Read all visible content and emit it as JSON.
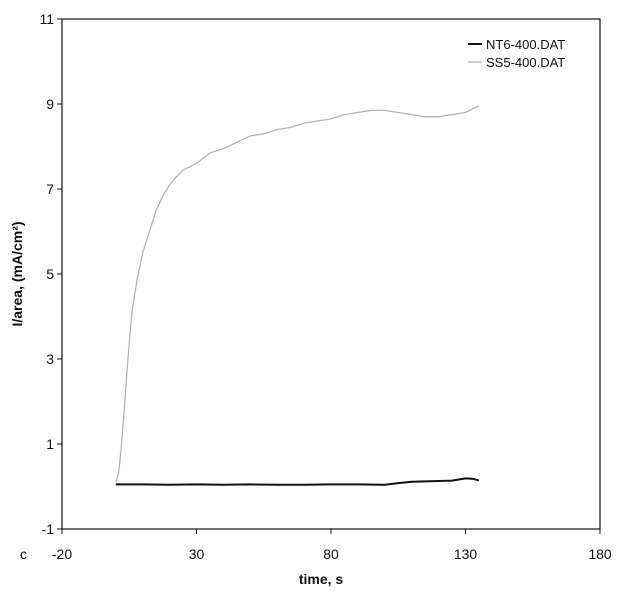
{
  "chart_data": {
    "type": "line",
    "panel_label": "c",
    "xlabel": "time, s",
    "ylabel": "I/area, (mA/cm²)",
    "xlim": [
      -20,
      180
    ],
    "ylim": [
      -1,
      11
    ],
    "xticks": [
      -20,
      30,
      80,
      130,
      180
    ],
    "yticks": [
      -1,
      1,
      3,
      5,
      7,
      9,
      11
    ],
    "grid": false,
    "legend_position": "top-right",
    "series": [
      {
        "name": "NT6-400.DAT",
        "color": "#111111",
        "x": [
          0,
          10,
          20,
          30,
          40,
          50,
          60,
          70,
          80,
          90,
          100,
          105,
          110,
          115,
          120,
          125,
          130,
          133,
          135
        ],
        "y": [
          0.05,
          0.05,
          0.04,
          0.05,
          0.04,
          0.05,
          0.04,
          0.04,
          0.05,
          0.05,
          0.04,
          0.08,
          0.11,
          0.12,
          0.13,
          0.14,
          0.19,
          0.18,
          0.14
        ]
      },
      {
        "name": "SS5-400.DAT",
        "color": "#b4b4b4",
        "x": [
          0,
          1,
          2,
          3,
          4,
          5,
          6,
          8,
          10,
          12,
          15,
          18,
          20,
          22,
          25,
          30,
          35,
          40,
          45,
          50,
          55,
          60,
          65,
          70,
          75,
          80,
          85,
          90,
          95,
          100,
          105,
          110,
          115,
          120,
          125,
          130,
          133,
          135
        ],
        "y": [
          0.1,
          0.3,
          0.9,
          1.7,
          2.6,
          3.4,
          4.1,
          4.9,
          5.5,
          5.9,
          6.5,
          6.9,
          7.1,
          7.25,
          7.45,
          7.6,
          7.85,
          7.95,
          8.1,
          8.25,
          8.3,
          8.4,
          8.45,
          8.55,
          8.6,
          8.65,
          8.75,
          8.8,
          8.85,
          8.85,
          8.8,
          8.75,
          8.7,
          8.7,
          8.75,
          8.8,
          8.9,
          8.95
        ]
      }
    ]
  }
}
